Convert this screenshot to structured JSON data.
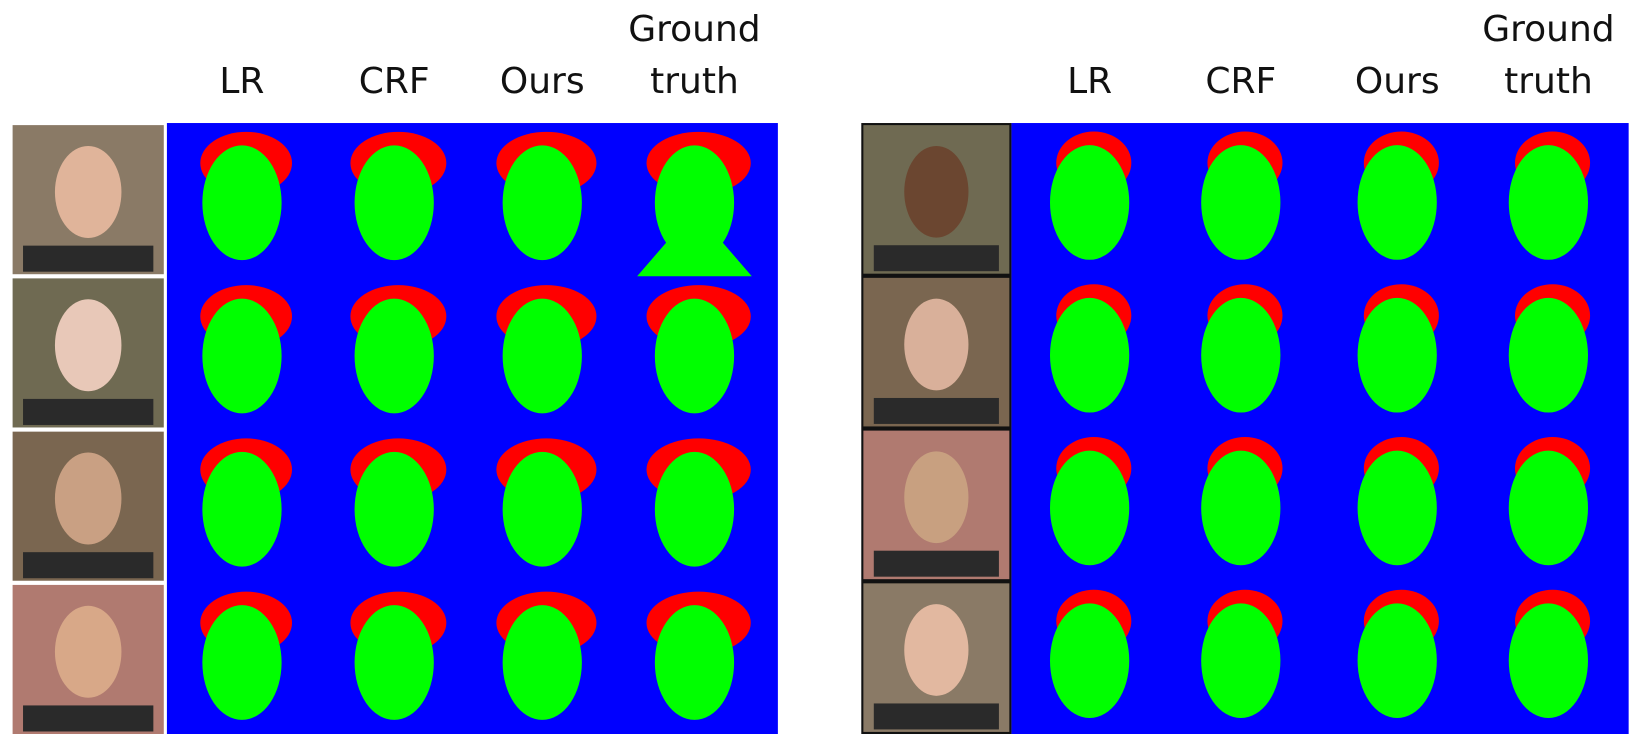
{
  "panels": [
    {
      "columns": [
        "LR",
        "CRF",
        "Ours",
        "Ground truth"
      ]
    },
    {
      "columns": [
        "LR",
        "CRF",
        "Ours",
        "Ground truth"
      ]
    }
  ]
}
